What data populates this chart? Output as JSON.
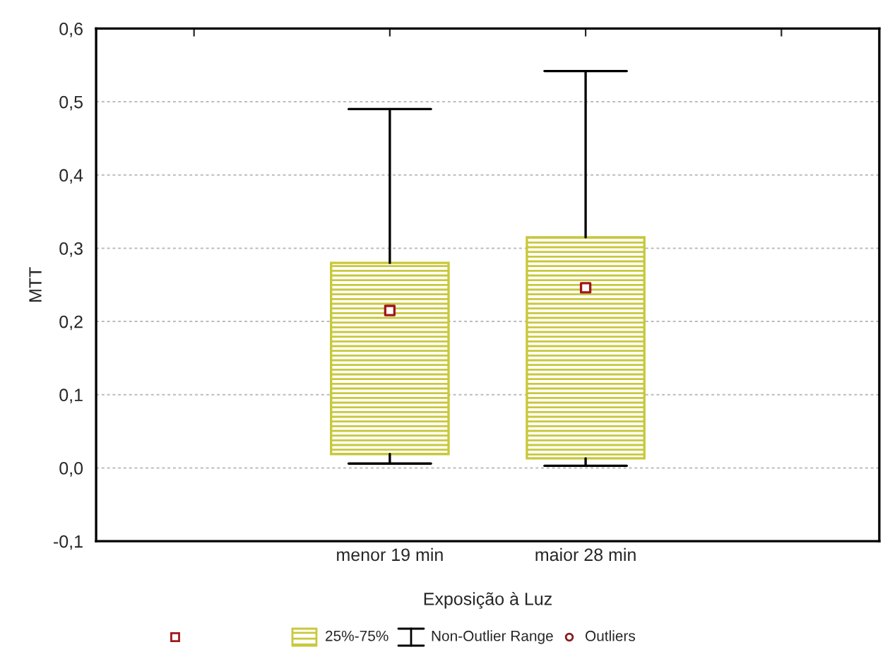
{
  "chart_data": {
    "type": "box",
    "xlabel": "Exposição à Luz",
    "ylabel": "MTT",
    "categories": [
      null,
      "menor 19 min",
      "maior 28 min",
      null
    ],
    "series": [
      {
        "color": "#c8c83c",
        "boxes": [
          null,
          {
            "low": 0.006,
            "q1": 0.019,
            "median": 0.215,
            "q3": 0.28,
            "high": 0.49
          },
          {
            "low": 0.003,
            "q1": 0.013,
            "median": 0.246,
            "q3": 0.315,
            "high": 0.542
          },
          null
        ]
      }
    ],
    "ylim": [
      -0.1,
      0.6
    ],
    "yticks": [
      {
        "value": -0.1,
        "label": "-0,1"
      },
      {
        "value": 0.0,
        "label": "0,0"
      },
      {
        "value": 0.1,
        "label": "0,1"
      },
      {
        "value": 0.2,
        "label": "0,2"
      },
      {
        "value": 0.3,
        "label": "0,3"
      },
      {
        "value": 0.4,
        "label": "0,4"
      },
      {
        "value": 0.5,
        "label": "0,5"
      },
      {
        "value": 0.6,
        "label": "0,6"
      }
    ],
    "grid": "y",
    "annotations": [
      "25%-75%",
      "Non-Outlier Range",
      "Outliers"
    ]
  }
}
